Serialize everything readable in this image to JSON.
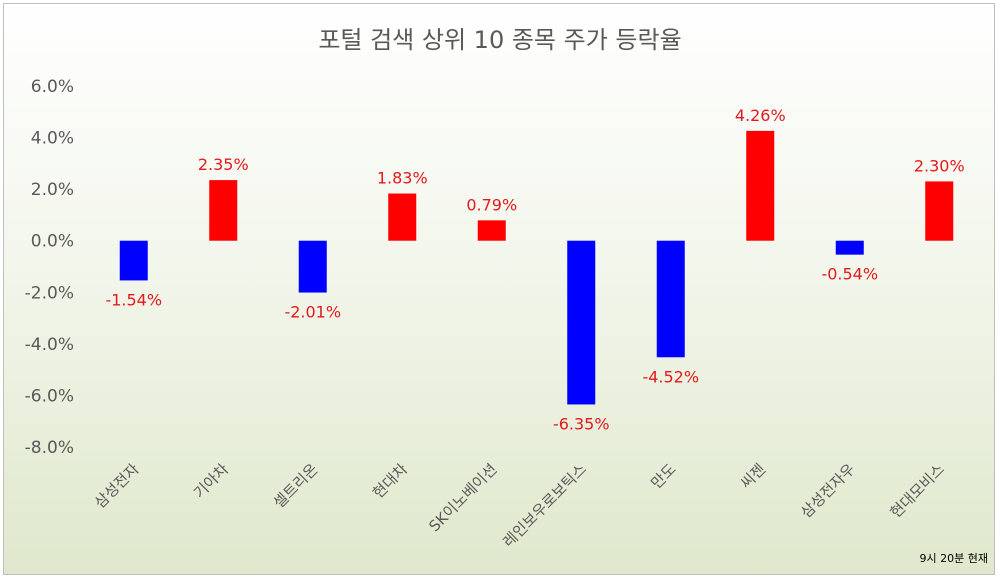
{
  "chart_data": {
    "type": "bar",
    "title": "포털 검색 상위 10 종목 주가 등락율",
    "categories": [
      "삼성전자",
      "기아차",
      "셀트리온",
      "현대차",
      "SK이노베이션",
      "레인보우로보틱스",
      "만도",
      "씨젠",
      "삼성전자우",
      "현대모비스"
    ],
    "values": [
      -1.54,
      2.35,
      -2.01,
      1.83,
      0.79,
      -6.35,
      -4.52,
      4.26,
      -0.54,
      2.3
    ],
    "data_labels": [
      "-1.54%",
      "2.35%",
      "-2.01%",
      "1.83%",
      "0.79%",
      "-6.35%",
      "-4.52%",
      "4.26%",
      "-0.54%",
      "2.30%"
    ],
    "yticks": [
      "6.0%",
      "4.0%",
      "2.0%",
      "0.0%",
      "-2.0%",
      "-4.0%",
      "-6.0%",
      "-8.0%"
    ],
    "ylim": [
      -8,
      6
    ],
    "grid": false,
    "legend": "none",
    "xlabel": "",
    "ylabel": "",
    "note": "9시 20분 현재",
    "colors": {
      "positive": "#ff0000",
      "negative": "#0000ff",
      "data_label": "#e31a1c",
      "text": "#595959"
    }
  }
}
